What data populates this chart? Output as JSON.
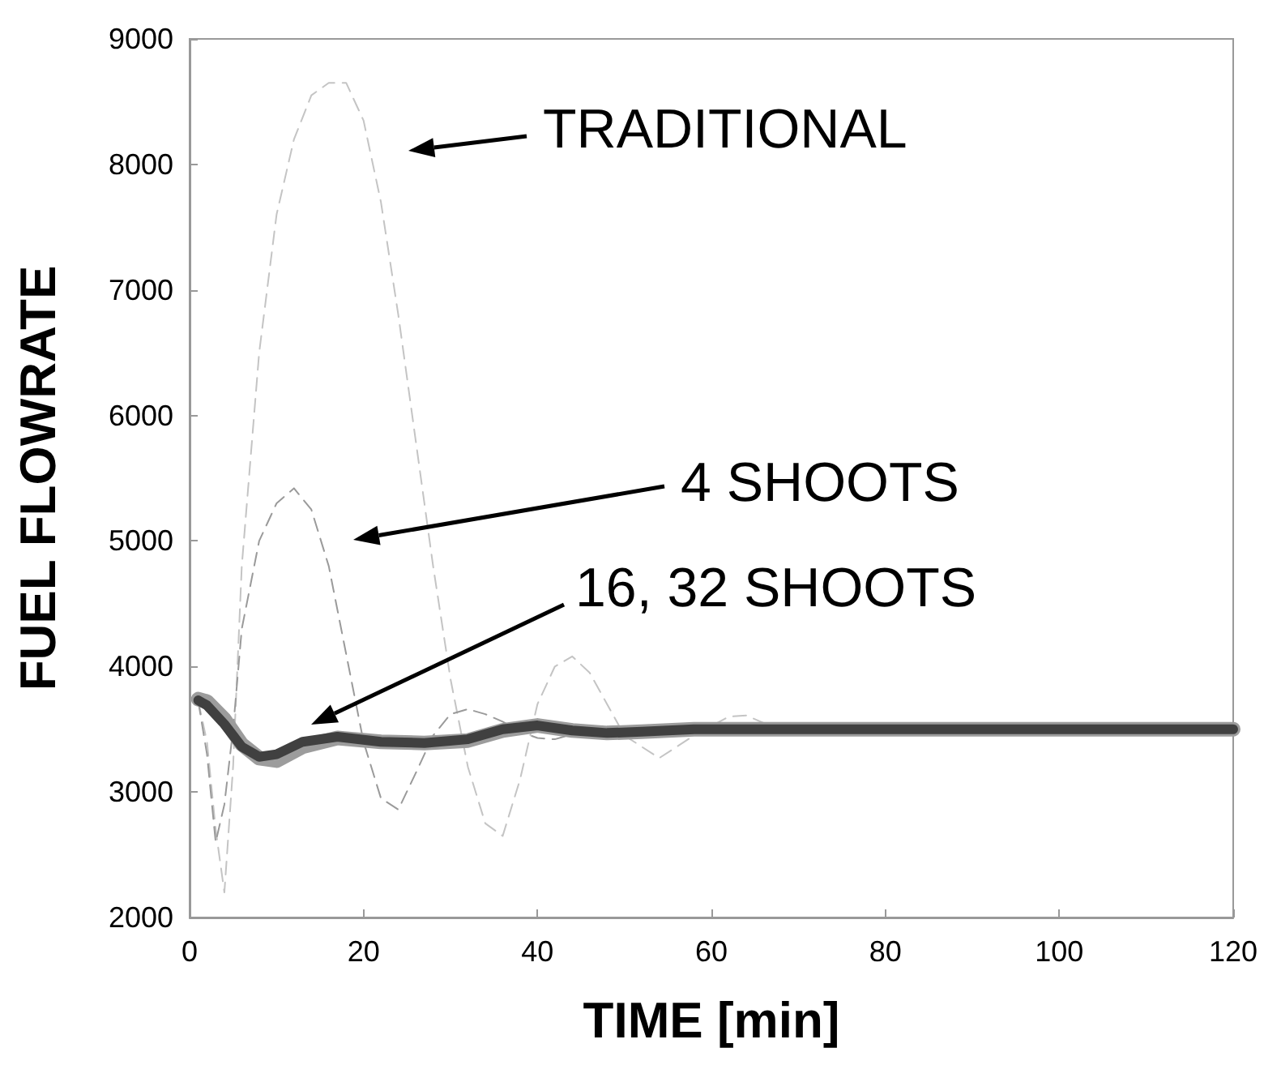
{
  "chart_data": {
    "type": "line",
    "xlabel": "TIME [min]",
    "ylabel": "FUEL FLOWRATE",
    "xlim": [
      0,
      120
    ],
    "xticks": [
      0,
      20,
      40,
      60,
      80,
      100,
      120
    ],
    "ylim": [
      2000,
      9000
    ],
    "yticks": [
      2000,
      3000,
      4000,
      5000,
      6000,
      7000,
      8000,
      9000
    ],
    "grid": false,
    "marker": "none",
    "series": [
      {
        "color": "#c4c4c4",
        "line_style": "dashed",
        "x": [
          1,
          2,
          3,
          4,
          5,
          6,
          8,
          10,
          12,
          14,
          16,
          18,
          20,
          22,
          24,
          26,
          28,
          30,
          32,
          34,
          36,
          38,
          40,
          42,
          44,
          46,
          48,
          50,
          54,
          58,
          62,
          64,
          67,
          70,
          75,
          80,
          120
        ],
        "values": [
          3720,
          3400,
          2700,
          2200,
          3200,
          4800,
          6500,
          7600,
          8200,
          8550,
          8650,
          8650,
          8350,
          7700,
          6800,
          5800,
          4800,
          3900,
          3200,
          2750,
          2650,
          3100,
          3700,
          4000,
          4080,
          3950,
          3700,
          3450,
          3270,
          3450,
          3600,
          3610,
          3520,
          3480,
          3500,
          3500,
          3500
        ]
      },
      {
        "color": "#9a9a9a",
        "line_style": "dashed",
        "x": [
          1,
          2,
          3,
          4,
          5,
          6,
          8,
          10,
          12,
          14,
          16,
          18,
          20,
          22,
          24,
          26,
          28,
          30,
          32,
          34,
          36,
          38,
          40,
          42,
          44,
          46,
          50,
          55,
          60,
          120
        ],
        "values": [
          3720,
          3300,
          2600,
          2900,
          3500,
          4300,
          5000,
          5300,
          5420,
          5250,
          4800,
          4100,
          3400,
          2950,
          2860,
          3150,
          3450,
          3620,
          3660,
          3620,
          3560,
          3480,
          3430,
          3420,
          3460,
          3500,
          3480,
          3500,
          3500,
          3500
        ]
      },
      {
        "color": "#9c9c9c",
        "line_style": "solid",
        "x": [
          1,
          2,
          4,
          6,
          8,
          10,
          13,
          17,
          22,
          27,
          32,
          36,
          40,
          44,
          48,
          52,
          58,
          70,
          120
        ],
        "values": [
          3740,
          3720,
          3580,
          3380,
          3270,
          3250,
          3360,
          3430,
          3400,
          3390,
          3410,
          3490,
          3530,
          3490,
          3470,
          3480,
          3500,
          3500,
          3500
        ]
      },
      {
        "color": "#404040",
        "line_style": "solid",
        "x": [
          1,
          2,
          4,
          6,
          8,
          10,
          13,
          17,
          22,
          27,
          32,
          36,
          40,
          44,
          48,
          52,
          58,
          70,
          120
        ],
        "values": [
          3730,
          3690,
          3540,
          3360,
          3280,
          3300,
          3400,
          3440,
          3400,
          3390,
          3420,
          3500,
          3530,
          3490,
          3470,
          3480,
          3500,
          3500,
          3500
        ]
      }
    ],
    "annotations": [
      "TRADITIONAL",
      "4 SHOOTS",
      "16, 32 SHOOTS"
    ]
  }
}
